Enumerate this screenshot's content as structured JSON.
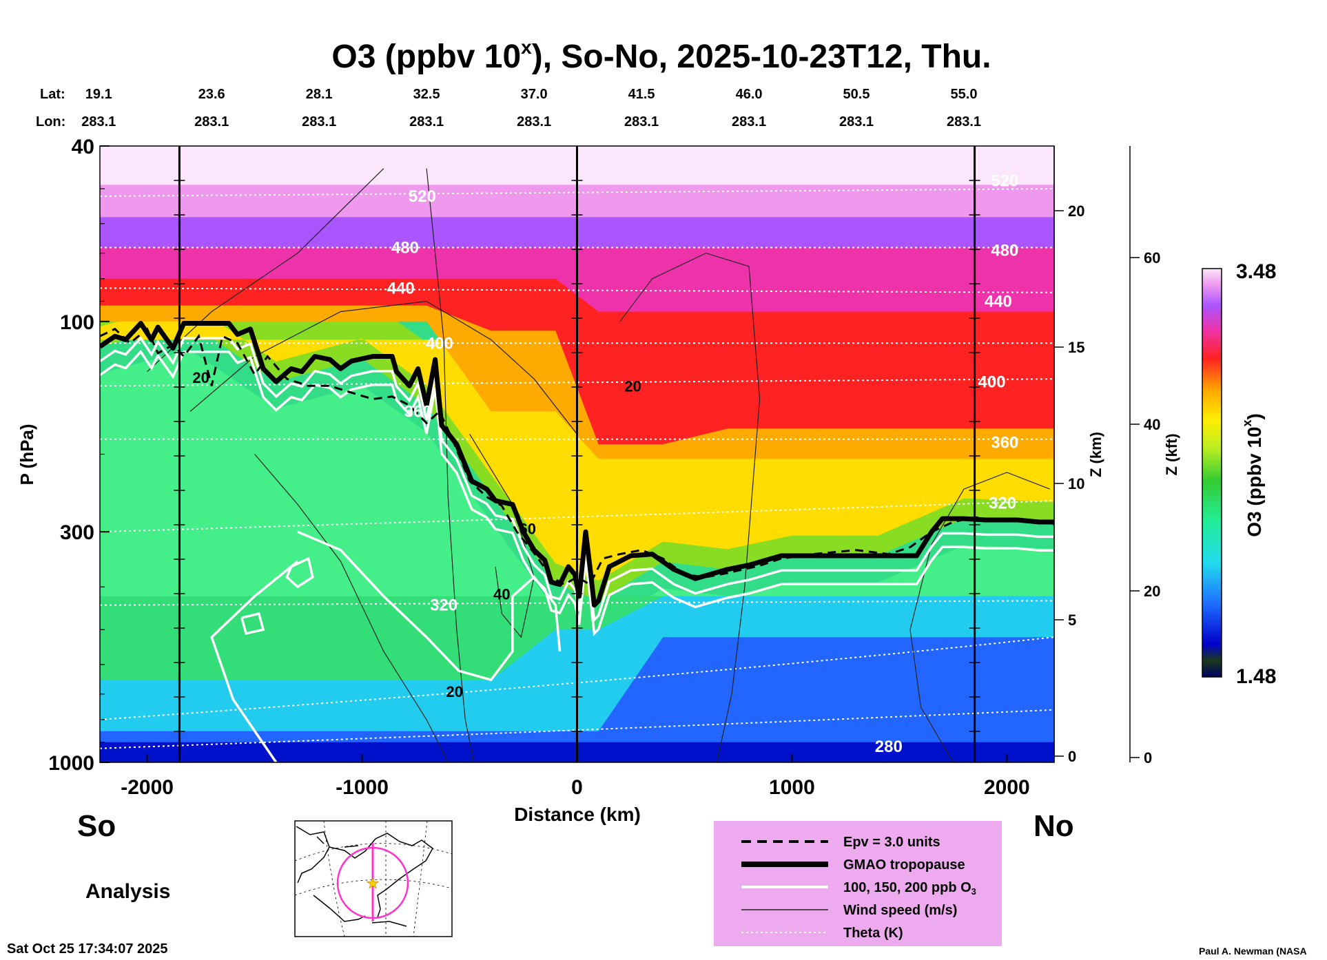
{
  "chart_data": {
    "type": "heatmap",
    "title_main": "O3 (ppbv 10",
    "title_sup": "x",
    "title_rest": "), So-No, 2025-10-23T12, Thu.",
    "lat_label": "Lat:",
    "lon_label": "Lon:",
    "stations": [
      {
        "lat": "19.1",
        "lon": "283.1",
        "dist": -2200
      },
      {
        "lat": "23.6",
        "lon": "283.1",
        "dist": -1700
      },
      {
        "lat": "28.1",
        "lon": "283.1",
        "dist": -1200
      },
      {
        "lat": "32.5",
        "lon": "283.1",
        "dist": -700
      },
      {
        "lat": "37.0",
        "lon": "283.1",
        "dist": -200
      },
      {
        "lat": "41.5",
        "lon": "283.1",
        "dist": 300
      },
      {
        "lat": "46.0",
        "lon": "283.1",
        "dist": 800
      },
      {
        "lat": "50.5",
        "lon": "283.1",
        "dist": 1300
      },
      {
        "lat": "55.0",
        "lon": "283.1",
        "dist": 1800
      }
    ],
    "xlabel": "Distance (km)",
    "xlim": [
      -2220,
      2220
    ],
    "x_ticks": [
      -2000,
      -1000,
      0,
      1000,
      2000
    ],
    "x_tick_labels": [
      "-2000",
      "-1000",
      "0",
      "1000",
      "2000"
    ],
    "ylabel": "P (hPa)",
    "ylim": [
      1000,
      40
    ],
    "y_ticks": [
      40,
      100,
      300,
      1000
    ],
    "y_tick_labels": [
      "40",
      "100",
      "300",
      "1000"
    ],
    "z_km_label": "Z (km)",
    "z_km_ticks": [
      "0",
      "5",
      "10",
      "15",
      "20"
    ],
    "z_kft_label": "Z (kft)",
    "z_kft_ticks": [
      "0",
      "20",
      "40",
      "60"
    ],
    "vertical_markers": [
      -1850,
      0,
      1850
    ],
    "colorbar": {
      "label_main": "O3 (ppbv 10",
      "label_sup": "x",
      "label_rest": ")",
      "max_label": "3.48",
      "min_label": "1.48",
      "min": 1.48,
      "max": 3.48
    },
    "theta_labels": [
      {
        "text": "520",
        "x": -720,
        "p": 52
      },
      {
        "text": "480",
        "x": -800,
        "p": 68
      },
      {
        "text": "440",
        "x": -820,
        "p": 84
      },
      {
        "text": "400",
        "x": -640,
        "p": 112
      },
      {
        "text": "360",
        "x": -740,
        "p": 160
      },
      {
        "text": "320",
        "x": -620,
        "p": 440
      },
      {
        "text": "280",
        "x": 1450,
        "p": 920
      },
      {
        "text": "520",
        "x": 1990,
        "p": 48
      },
      {
        "text": "480",
        "x": 1990,
        "p": 69
      },
      {
        "text": "440",
        "x": 1960,
        "p": 90
      },
      {
        "text": "400",
        "x": 1930,
        "p": 137
      },
      {
        "text": "360",
        "x": 1990,
        "p": 188
      },
      {
        "text": "320",
        "x": 1980,
        "p": 258
      }
    ],
    "wind_labels": [
      {
        "text": "20",
        "x": -1750,
        "p": 134
      },
      {
        "text": "20",
        "x": 260,
        "p": 140
      },
      {
        "text": "60",
        "x": -230,
        "p": 295
      },
      {
        "text": "40",
        "x": -350,
        "p": 415
      },
      {
        "text": "20",
        "x": -570,
        "p": 690
      }
    ],
    "tropopause": [
      [
        -2220,
        114
      ],
      [
        -2150,
        108
      ],
      [
        -2100,
        110
      ],
      [
        -2030,
        101
      ],
      [
        -1980,
        110
      ],
      [
        -1950,
        103
      ],
      [
        -1880,
        115
      ],
      [
        -1830,
        101
      ],
      [
        -1750,
        101
      ],
      [
        -1620,
        101
      ],
      [
        -1580,
        107
      ],
      [
        -1520,
        104
      ],
      [
        -1460,
        128
      ],
      [
        -1400,
        137
      ],
      [
        -1330,
        128
      ],
      [
        -1280,
        130
      ],
      [
        -1220,
        120
      ],
      [
        -1150,
        122
      ],
      [
        -1100,
        128
      ],
      [
        -1050,
        123
      ],
      [
        -950,
        120
      ],
      [
        -860,
        120
      ],
      [
        -840,
        130
      ],
      [
        -780,
        140
      ],
      [
        -740,
        128
      ],
      [
        -700,
        155
      ],
      [
        -660,
        122
      ],
      [
        -630,
        172
      ],
      [
        -560,
        190
      ],
      [
        -490,
        230
      ],
      [
        -420,
        240
      ],
      [
        -380,
        255
      ],
      [
        -300,
        260
      ],
      [
        -250,
        300
      ],
      [
        -200,
        330
      ],
      [
        -150,
        348
      ],
      [
        -120,
        390
      ],
      [
        -80,
        395
      ],
      [
        -40,
        360
      ],
      [
        -10,
        375
      ],
      [
        10,
        420
      ],
      [
        40,
        300
      ],
      [
        60,
        360
      ],
      [
        80,
        440
      ],
      [
        100,
        430
      ],
      [
        150,
        360
      ],
      [
        250,
        340
      ],
      [
        350,
        337
      ],
      [
        450,
        365
      ],
      [
        550,
        383
      ],
      [
        700,
        365
      ],
      [
        800,
        357
      ],
      [
        950,
        340
      ],
      [
        1300,
        340
      ],
      [
        1580,
        340
      ],
      [
        1650,
        300
      ],
      [
        1700,
        280
      ],
      [
        1800,
        280
      ],
      [
        1900,
        282
      ],
      [
        2050,
        282
      ],
      [
        2150,
        285
      ],
      [
        2220,
        285
      ]
    ],
    "epv": [
      [
        -2220,
        108
      ],
      [
        -2150,
        104
      ],
      [
        -2080,
        112
      ],
      [
        -2000,
        104
      ],
      [
        -1950,
        118
      ],
      [
        -1880,
        113
      ],
      [
        -1830,
        120
      ],
      [
        -1760,
        108
      ],
      [
        -1700,
        140
      ],
      [
        -1650,
        108
      ],
      [
        -1580,
        112
      ],
      [
        -1500,
        132
      ],
      [
        -1440,
        120
      ],
      [
        -1350,
        135
      ],
      [
        -1250,
        140
      ],
      [
        -1150,
        140
      ],
      [
        -1050,
        145
      ],
      [
        -950,
        150
      ],
      [
        -860,
        148
      ],
      [
        -780,
        155
      ],
      [
        -700,
        170
      ],
      [
        -640,
        160
      ],
      [
        -580,
        185
      ],
      [
        -500,
        230
      ],
      [
        -420,
        250
      ],
      [
        -350,
        262
      ],
      [
        -280,
        300
      ],
      [
        -200,
        335
      ],
      [
        -120,
        380
      ],
      [
        -60,
        395
      ],
      [
        0,
        380
      ],
      [
        60,
        395
      ],
      [
        120,
        345
      ],
      [
        200,
        337
      ],
      [
        300,
        330
      ],
      [
        400,
        345
      ],
      [
        500,
        375
      ],
      [
        600,
        380
      ],
      [
        700,
        372
      ],
      [
        850,
        358
      ],
      [
        950,
        345
      ],
      [
        1100,
        337
      ],
      [
        1300,
        330
      ],
      [
        1450,
        337
      ],
      [
        1550,
        325
      ],
      [
        1650,
        300
      ],
      [
        1750,
        285
      ],
      [
        1850,
        278
      ],
      [
        1950,
        282
      ],
      [
        2100,
        285
      ],
      [
        2220,
        288
      ]
    ],
    "legend": [
      {
        "text": "Epv = 3.0 units",
        "style": "dashed"
      },
      {
        "text": "GMAO tropopause",
        "style": "thick"
      },
      {
        "text": "100, 150, 200 ppb O",
        "sub": "3",
        "style": "white"
      },
      {
        "text": "Wind speed (m/s)",
        "style": "thin"
      },
      {
        "text": "Theta (K)",
        "style": "dotted"
      }
    ],
    "left_label": "So",
    "right_label": "No",
    "analysis_label": "Analysis"
  },
  "footer": {
    "timestamp": "Sat Oct 25 17:34:07 2025",
    "credit": "Paul A. Newman (NASA"
  },
  "colors": {
    "legend_bg": "#eeaaee",
    "map_track": "#ff33cc",
    "map_star": "#ffcc00"
  }
}
